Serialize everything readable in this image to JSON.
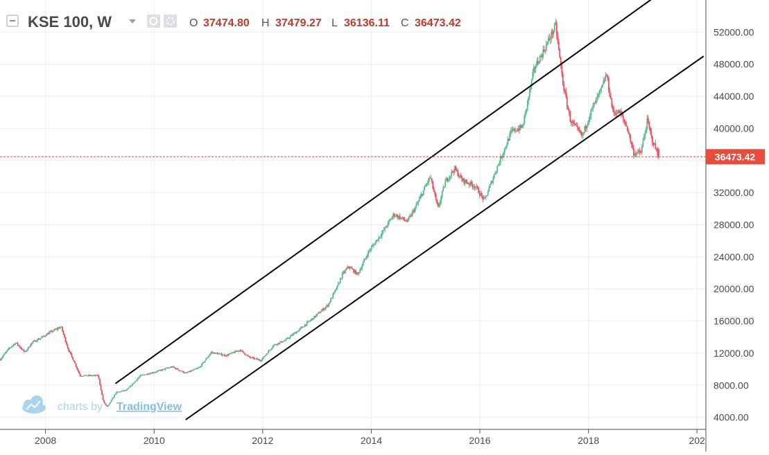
{
  "header": {
    "symbol": "KSE 100, W",
    "open_label": "O",
    "open_value": "37474.80",
    "high_label": "H",
    "high_value": "37479.27",
    "low_label": "L",
    "low_value": "36136.11",
    "close_label": "C",
    "close_value": "36473.42"
  },
  "watermark": {
    "prefix": "charts by",
    "brand": "TradingView"
  },
  "price_tag": "36473.42",
  "colors": {
    "up": "#53b987",
    "down": "#eb4d5c",
    "grid": "#e9edf2",
    "text": "#4a4a4a",
    "value_red": "#c0392b",
    "price_line": "#d9534f",
    "watermark": "#aad4ee",
    "channel": "#000000"
  },
  "chart_data": {
    "type": "candlestick",
    "title": "KSE 100, W",
    "interval": "Weekly",
    "x_axis": {
      "type": "date",
      "tick_labels": [
        "2008",
        "2010",
        "2012",
        "2014",
        "2016",
        "2018",
        "202"
      ],
      "range": [
        "2007-03",
        "2020-03"
      ]
    },
    "y_axis": {
      "position": "right",
      "ylim": [
        2500,
        56000
      ],
      "tick_labels": [
        "4000.00",
        "8000.00",
        "12000.00",
        "16000.00",
        "20000.00",
        "24000.00",
        "28000.00",
        "32000.00",
        "36000.00",
        "40000.00",
        "44000.00",
        "48000.00",
        "52000.00"
      ]
    },
    "grid": true,
    "last_bar": {
      "open": 37474.8,
      "high": 37479.27,
      "low": 36136.11,
      "close": 36473.42
    },
    "last_price_line": 36473.42,
    "close_series_approx": [
      [
        "2007-03-01",
        11200
      ],
      [
        "2007-05-01",
        12600
      ],
      [
        "2007-06-15",
        13300
      ],
      [
        "2007-08-15",
        12100
      ],
      [
        "2007-10-01",
        13300
      ],
      [
        "2007-12-01",
        13900
      ],
      [
        "2008-02-01",
        14600
      ],
      [
        "2008-04-15",
        15300
      ],
      [
        "2008-06-01",
        12500
      ],
      [
        "2008-07-15",
        10800
      ],
      [
        "2008-08-20",
        9200
      ],
      [
        "2008-12-20",
        9200
      ],
      [
        "2009-01-25",
        5900
      ],
      [
        "2009-02-20",
        5300
      ],
      [
        "2009-04-20",
        7100
      ],
      [
        "2009-07-01",
        7400
      ],
      [
        "2009-10-01",
        9200
      ],
      [
        "2010-01-15",
        9700
      ],
      [
        "2010-05-01",
        10300
      ],
      [
        "2010-08-01",
        9500
      ],
      [
        "2010-11-01",
        10200
      ],
      [
        "2011-01-20",
        12100
      ],
      [
        "2011-05-01",
        11700
      ],
      [
        "2011-08-01",
        12400
      ],
      [
        "2011-10-01",
        11500
      ],
      [
        "2011-12-20",
        11100
      ],
      [
        "2012-03-15",
        13000
      ],
      [
        "2012-06-01",
        13600
      ],
      [
        "2012-09-01",
        14900
      ],
      [
        "2012-12-20",
        16600
      ],
      [
        "2013-03-15",
        18000
      ],
      [
        "2013-05-15",
        20200
      ],
      [
        "2013-06-20",
        21800
      ],
      [
        "2013-08-01",
        22800
      ],
      [
        "2013-10-01",
        21800
      ],
      [
        "2013-12-15",
        24700
      ],
      [
        "2014-03-15",
        27000
      ],
      [
        "2014-06-01",
        29300
      ],
      [
        "2014-09-01",
        28400
      ],
      [
        "2014-11-01",
        30400
      ],
      [
        "2015-02-01",
        34000
      ],
      [
        "2015-03-25",
        30000
      ],
      [
        "2015-05-15",
        33400
      ],
      [
        "2015-07-15",
        35000
      ],
      [
        "2015-09-01",
        33600
      ],
      [
        "2015-12-01",
        32800
      ],
      [
        "2016-02-01",
        31000
      ],
      [
        "2016-05-01",
        35400
      ],
      [
        "2016-08-01",
        39600
      ],
      [
        "2016-10-15",
        40200
      ],
      [
        "2017-01-01",
        47500
      ],
      [
        "2017-03-01",
        49500
      ],
      [
        "2017-05-25",
        52800
      ],
      [
        "2017-07-15",
        45400
      ],
      [
        "2017-09-01",
        41000
      ],
      [
        "2017-11-20",
        39000
      ],
      [
        "2018-01-15",
        42000
      ],
      [
        "2018-04-01",
        45000
      ],
      [
        "2018-05-01",
        46800
      ],
      [
        "2018-06-15",
        42000
      ],
      [
        "2018-08-01",
        42000
      ],
      [
        "2018-09-20",
        40000
      ],
      [
        "2018-11-01",
        36900
      ],
      [
        "2018-12-20",
        37000
      ],
      [
        "2019-02-01",
        41000
      ],
      [
        "2019-03-01",
        38800
      ],
      [
        "2019-04-20",
        36473
      ]
    ],
    "trendlines": [
      {
        "name": "",
        "from": [
          "2009-04-15",
          8200
        ],
        "to": [
          "2019-06-15",
          57500
        ]
      },
      {
        "name": "",
        "from": [
          "2010-08-01",
          3700
        ],
        "to": [
          "2020-02-15",
          49000
        ]
      }
    ]
  }
}
